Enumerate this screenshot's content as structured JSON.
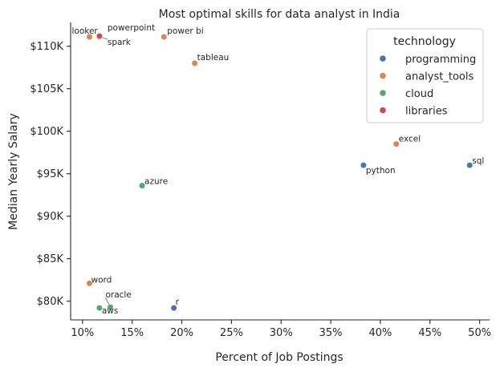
{
  "chart_data": {
    "type": "scatter",
    "title": "Most optimal skills for data analyst in India",
    "xlabel": "Percent of Job Postings",
    "ylabel": "Median Yearly Salary",
    "xlim": [
      8.8,
      51
    ],
    "ylim": [
      77800,
      112800
    ],
    "x_ticks": [
      10,
      15,
      20,
      25,
      30,
      35,
      40,
      45,
      50
    ],
    "x_tick_labels": [
      "10%",
      "15%",
      "20%",
      "25%",
      "30%",
      "35%",
      "40%",
      "45%",
      "50%"
    ],
    "y_ticks": [
      80000,
      85000,
      90000,
      95000,
      100000,
      105000,
      110000
    ],
    "y_tick_labels": [
      "$80K",
      "$85K",
      "$90K",
      "$95K",
      "$100K",
      "$105K",
      "$110K"
    ],
    "grid": false,
    "legend": {
      "title": "technology",
      "placement": "top-right",
      "entries": [
        {
          "name": "programming",
          "color": "#4c72b0"
        },
        {
          "name": "analyst_tools",
          "color": "#dd8452"
        },
        {
          "name": "cloud",
          "color": "#55a868"
        },
        {
          "name": "libraries",
          "color": "#c44e52"
        }
      ]
    },
    "points": [
      {
        "label": "sql",
        "x": 49.0,
        "y": 96000,
        "category": "programming"
      },
      {
        "label": "python",
        "x": 38.3,
        "y": 96000,
        "category": "programming"
      },
      {
        "label": "r",
        "x": 19.2,
        "y": 79200,
        "category": "programming"
      },
      {
        "label": "excel",
        "x": 41.6,
        "y": 98500,
        "category": "analyst_tools"
      },
      {
        "label": "tableau",
        "x": 21.3,
        "y": 108000,
        "category": "analyst_tools"
      },
      {
        "label": "power bi",
        "x": 18.2,
        "y": 111100,
        "category": "analyst_tools"
      },
      {
        "label": "looker",
        "x": 10.7,
        "y": 111100,
        "category": "analyst_tools"
      },
      {
        "label": "word",
        "x": 10.7,
        "y": 82100,
        "category": "analyst_tools"
      },
      {
        "label": "azure",
        "x": 16.0,
        "y": 93600,
        "category": "cloud"
      },
      {
        "label": "oracle",
        "x": 12.8,
        "y": 79300,
        "category": "cloud"
      },
      {
        "label": "aws",
        "x": 11.7,
        "y": 79200,
        "category": "cloud"
      },
      {
        "label": "spark",
        "x": 11.7,
        "y": 111100,
        "category": "libraries"
      },
      {
        "label": "powerpoint",
        "x": 11.7,
        "y": 111200,
        "category": "libraries"
      }
    ]
  }
}
